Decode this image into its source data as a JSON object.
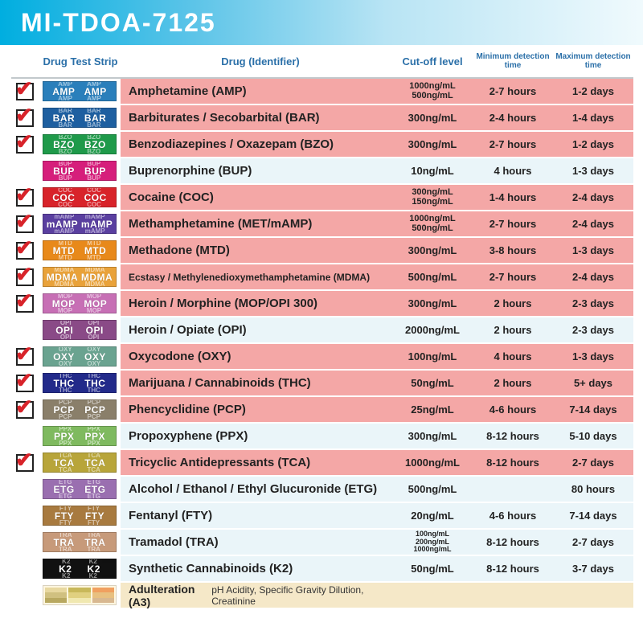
{
  "title": "MI-TDOA-7125",
  "headers": {
    "strip": "Drug Test Strip",
    "drug": "Drug (Identifier)",
    "cutoff": "Cut-off level",
    "min": "Minimum detection time",
    "max": "Maximum detection time"
  },
  "colors": {
    "bg_checked": "#f4a7a6",
    "bg_checked_alt": "#f4a7a6",
    "bg_unchecked": "#eaf5f9"
  },
  "rows": [
    {
      "checked": true,
      "code": "AMP",
      "strip_color": "#2a7fbb",
      "drug": "Amphetamine (AMP)",
      "cutoff": [
        "1000ng/mL",
        "500ng/mL"
      ],
      "min": "2-7 hours",
      "max": "1-2 days"
    },
    {
      "checked": true,
      "code": "BAR",
      "strip_color": "#1e5fa0",
      "drug": "Barbiturates / Secobarbital (BAR)",
      "cutoff": [
        "300ng/mL"
      ],
      "min": "2-4 hours",
      "max": "1-4 days"
    },
    {
      "checked": true,
      "code": "BZO",
      "strip_color": "#1f9a4a",
      "drug": "Benzodiazepines / Oxazepam (BZO)",
      "cutoff": [
        "300ng/mL"
      ],
      "min": "2-7 hours",
      "max": "1-2 days"
    },
    {
      "checked": false,
      "code": "BUP",
      "strip_color": "#d61e7b",
      "drug": "Buprenorphine (BUP)",
      "cutoff": [
        "10ng/mL"
      ],
      "min": "4 hours",
      "max": "1-3 days"
    },
    {
      "checked": true,
      "code": "COC",
      "strip_color": "#d8232a",
      "drug": "Cocaine (COC)",
      "cutoff": [
        "300ng/mL",
        "150ng/mL"
      ],
      "min": "1-4 hours",
      "max": "2-4 days"
    },
    {
      "checked": true,
      "code": "mAMP",
      "strip_color": "#5a3fa0",
      "drug": "Methamphetamine (MET/mAMP)",
      "cutoff": [
        "1000ng/mL",
        "500ng/mL"
      ],
      "min": "2-7 hours",
      "max": "2-4 days"
    },
    {
      "checked": true,
      "code": "MTD",
      "strip_color": "#e8891a",
      "drug": "Methadone (MTD)",
      "cutoff": [
        "300ng/mL"
      ],
      "min": "3-8 hours",
      "max": "1-3 days"
    },
    {
      "checked": true,
      "code": "MDMA",
      "strip_color": "#e9a23a",
      "drug": "Ecstasy / Methylenedioxymethamphetamine (MDMA)",
      "cutoff": [
        "500ng/mL"
      ],
      "min": "2-7 hours",
      "max": "2-4 days",
      "small_drug": true
    },
    {
      "checked": true,
      "code": "MOP",
      "strip_color": "#c76fb5",
      "drug": "Heroin / Morphine (MOP/OPI 300)",
      "cutoff": [
        "300ng/mL"
      ],
      "min": "2 hours",
      "max": "2-3 days"
    },
    {
      "checked": false,
      "code": "OPI",
      "strip_color": "#8a4a87",
      "drug": "Heroin / Opiate (OPI)",
      "cutoff": [
        "2000ng/mL"
      ],
      "min": "2 hours",
      "max": "2-3 days"
    },
    {
      "checked": true,
      "code": "OXY",
      "strip_color": "#6aa390",
      "drug": "Oxycodone (OXY)",
      "cutoff": [
        "100ng/mL"
      ],
      "min": "4 hours",
      "max": "1-3 days"
    },
    {
      "checked": true,
      "code": "THC",
      "strip_color": "#222a8a",
      "drug": "Marijuana / Cannabinoids (THC)",
      "cutoff": [
        "50ng/mL"
      ],
      "min": "2 hours",
      "max": "5+ days"
    },
    {
      "checked": true,
      "code": "PCP",
      "strip_color": "#8a7f6a",
      "drug": "Phencyclidine (PCP)",
      "cutoff": [
        "25ng/mL"
      ],
      "min": "4-6 hours",
      "max": "7-14 days"
    },
    {
      "checked": false,
      "code": "PPX",
      "strip_color": "#7fba5f",
      "drug": "Propoxyphene (PPX)",
      "cutoff": [
        "300ng/mL"
      ],
      "min": "8-12 hours",
      "max": "5-10 days"
    },
    {
      "checked": true,
      "code": "TCA",
      "strip_color": "#b8a53a",
      "drug": "Tricyclic Antidepressants (TCA)",
      "cutoff": [
        "1000ng/mL"
      ],
      "min": "8-12 hours",
      "max": "2-7 days"
    },
    {
      "checked": false,
      "code": "ETG",
      "strip_color": "#9a6fb0",
      "drug": "Alcohol / Ethanol / Ethyl Glucuronide (ETG)",
      "cutoff": [
        "500ng/mL"
      ],
      "min": "",
      "max": "80 hours"
    },
    {
      "checked": false,
      "code": "FTY",
      "strip_color": "#a87a3f",
      "drug": "Fentanyl (FTY)",
      "cutoff": [
        "20ng/mL"
      ],
      "min": "4-6 hours",
      "max": "7-14 days"
    },
    {
      "checked": false,
      "code": "TRA",
      "strip_color": "#c79a7a",
      "drug": "Tramadol (TRA)",
      "cutoff": [
        "100ng/mL",
        "200ng/mL",
        "1000ng/mL"
      ],
      "cutoff_small": true,
      "min": "8-12 hours",
      "max": "2-7 days"
    },
    {
      "checked": false,
      "code": "K2",
      "strip_color": "#111111",
      "drug": "Synthetic Cannabinoids (K2)",
      "cutoff": [
        "50ng/mL"
      ],
      "min": "8-12 hours",
      "max": "3-7 days"
    }
  ],
  "adulteration": {
    "label": "Adulteration (A3)",
    "sub": "pH Acidity, Specific Gravity Dilution, Creatinine",
    "segs": [
      [
        "#e8d8a0",
        "#d0c080",
        "#b8a860"
      ],
      [
        "#c8b85a",
        "#e0d080",
        "#f0e8b0"
      ],
      [
        "#f0a060",
        "#e8c080",
        "#d8b890"
      ]
    ]
  }
}
